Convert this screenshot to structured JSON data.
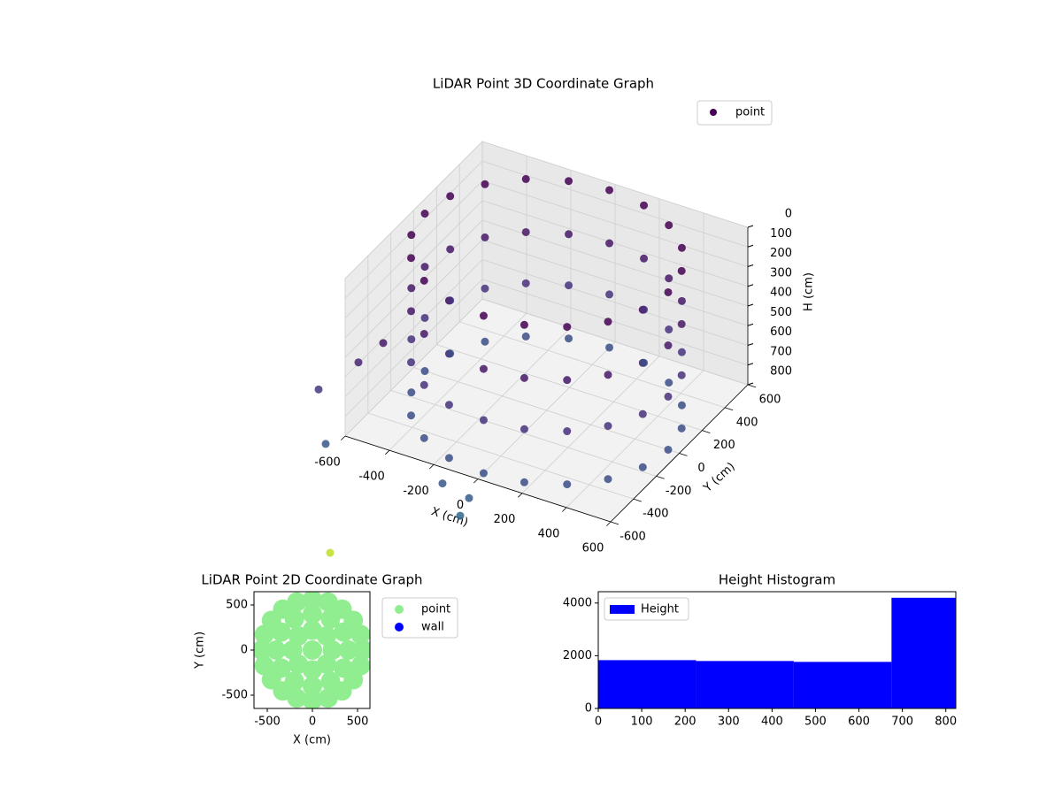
{
  "chart_data": [
    {
      "type": "scatter3d",
      "title": "LiDAR Point 3D Coordinate Graph",
      "xlabel": "X (cm)",
      "ylabel": "Y (cm)",
      "zlabel": "H (cm)",
      "xlim": [
        -600,
        600
      ],
      "ylim": [
        -600,
        600
      ],
      "zlim": [
        0,
        800
      ],
      "z_inverted": true,
      "xticks": [
        -600,
        -400,
        -200,
        0,
        200,
        400,
        600
      ],
      "yticks": [
        -600,
        -400,
        -200,
        0,
        200,
        400,
        600
      ],
      "zticks": [
        0,
        100,
        200,
        300,
        400,
        500,
        600,
        700,
        800
      ],
      "grid": true,
      "legend": "upper right",
      "colormap": "viridis",
      "series": [
        {
          "name": "point",
          "x": [
            550,
            523,
            445,
            323,
            170,
            0,
            -170,
            -323,
            -445,
            -523,
            -550,
            -523,
            -445,
            -323,
            -170,
            0,
            170,
            323,
            445,
            523,
            550,
            523,
            445,
            323,
            170,
            0,
            -170,
            -323,
            -445,
            -523,
            -550,
            -523,
            -445,
            -323,
            -170,
            0,
            170,
            323,
            445,
            523,
            550,
            523,
            445,
            323,
            170,
            0,
            -170,
            -323,
            -445,
            -523,
            -550,
            -523,
            -445,
            -323,
            -170,
            0,
            170,
            323,
            445,
            523,
            550,
            523,
            445,
            323,
            170,
            0,
            -170,
            -323,
            -445,
            -523,
            -550,
            -523,
            -445,
            -323,
            -170,
            0,
            170,
            323,
            445,
            523,
            -80,
            -40,
            -160,
            -668,
            -720,
            -688,
            -540,
            -428
          ],
          "y": [
            0,
            170,
            323,
            445,
            523,
            550,
            523,
            445,
            323,
            170,
            0,
            -170,
            -323,
            -445,
            -523,
            -550,
            -523,
            -445,
            -323,
            -170,
            0,
            170,
            323,
            445,
            523,
            550,
            523,
            445,
            323,
            170,
            0,
            -170,
            -323,
            -445,
            -523,
            -550,
            -523,
            -445,
            -323,
            -170,
            0,
            170,
            323,
            445,
            523,
            550,
            523,
            445,
            323,
            170,
            0,
            -170,
            -323,
            -445,
            -523,
            -550,
            -523,
            -445,
            -323,
            -170,
            0,
            170,
            323,
            445,
            523,
            550,
            523,
            445,
            323,
            170,
            0,
            -170,
            -323,
            -445,
            -523,
            -550,
            -523,
            -445,
            -323,
            -170,
            -600,
            -600,
            -600,
            -600,
            -600,
            -600,
            -600,
            -600
          ],
          "z": [
            0,
            0,
            0,
            0,
            0,
            0,
            0,
            0,
            0,
            0,
            0,
            0,
            0,
            0,
            0,
            0,
            0,
            0,
            0,
            0,
            270,
            270,
            270,
            270,
            270,
            270,
            270,
            270,
            270,
            270,
            270,
            270,
            270,
            270,
            270,
            270,
            270,
            270,
            270,
            270,
            530,
            530,
            530,
            530,
            530,
            530,
            530,
            530,
            530,
            530,
            530,
            530,
            530,
            530,
            530,
            530,
            530,
            530,
            530,
            530,
            800,
            800,
            800,
            800,
            800,
            800,
            800,
            800,
            800,
            800,
            800,
            800,
            800,
            800,
            800,
            800,
            800,
            800,
            800,
            800,
            1016,
            912,
            881,
            1418,
            607,
            872,
            404,
            265
          ]
        }
      ]
    },
    {
      "type": "scatter",
      "title": "LiDAR Point 2D Coordinate Graph",
      "xlabel": "X (cm)",
      "ylabel": "Y (cm)",
      "xlim": [
        -647,
        637
      ],
      "ylim": [
        -647,
        647
      ],
      "xticks": [
        -500,
        0,
        500
      ],
      "yticks": [
        -500,
        0,
        500
      ],
      "legend": "outside right",
      "series": [
        {
          "name": "point",
          "color": "lightgreen",
          "x": [
            560,
            533,
            453,
            329,
            173,
            0,
            -173,
            -329,
            -453,
            -533,
            -560,
            -533,
            -453,
            -329,
            -173,
            0,
            173,
            329,
            453,
            533,
            400,
            346,
            200,
            0,
            -200,
            -346,
            -400,
            -346,
            -200,
            0,
            200,
            346,
            220,
            156,
            0,
            -156,
            -220,
            -156,
            0,
            156,
            0
          ],
          "y": [
            0,
            173,
            329,
            453,
            533,
            560,
            533,
            453,
            329,
            173,
            0,
            -173,
            -329,
            -453,
            -533,
            -560,
            -533,
            -453,
            -329,
            -173,
            0,
            200,
            346,
            400,
            346,
            200,
            0,
            -200,
            -346,
            -400,
            -346,
            -200,
            0,
            156,
            220,
            156,
            0,
            -156,
            -220,
            -156,
            0
          ]
        },
        {
          "name": "wall",
          "color": "blue",
          "x": [
            -560,
            560
          ],
          "y": [
            0,
            0
          ]
        }
      ]
    },
    {
      "type": "histogram",
      "title": "Height Histogram",
      "bins": [
        0,
        225,
        450,
        675,
        900
      ],
      "xlim": [
        0,
        823
      ],
      "ylim": [
        0,
        4430
      ],
      "xticks": [
        0,
        100,
        200,
        300,
        400,
        500,
        600,
        700,
        800
      ],
      "yticks": [
        0,
        2000,
        4000
      ],
      "legend": "upper left",
      "series": [
        {
          "name": "Height",
          "color": "blue",
          "values": [
            1833,
            1800,
            1767,
            4200
          ]
        }
      ]
    }
  ]
}
